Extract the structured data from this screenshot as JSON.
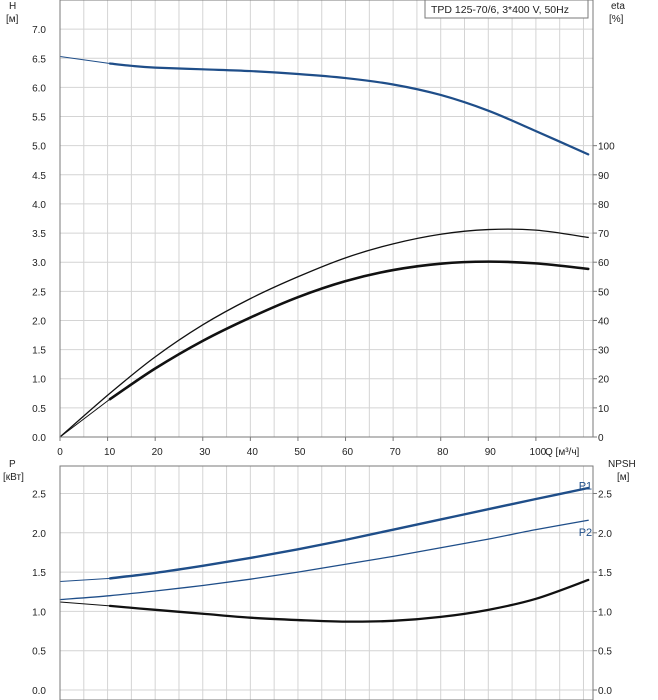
{
  "chart_data": [
    {
      "type": "line",
      "legend_box": "TPD 125-70/6, 3*400 V, 50Hz",
      "xlabel": "Q [м³/ч]",
      "xlim": [
        0,
        112
      ],
      "x_ticks": [
        0,
        10,
        20,
        30,
        40,
        50,
        60,
        70,
        80,
        90,
        100
      ],
      "ylabel_left": "H",
      "ylabel_left_unit": "[м]",
      "ylim_left": [
        0,
        7.5
      ],
      "y_ticks_left": [
        "0.0",
        "0.5",
        "1.0",
        "1.5",
        "2.0",
        "2.5",
        "3.0",
        "3.5",
        "4.0",
        "4.5",
        "5.0",
        "5.5",
        "6.0",
        "6.5",
        "7.0"
      ],
      "ylabel_right": "eta",
      "ylabel_right_unit": "[%]",
      "ylim_right": [
        0,
        150
      ],
      "y_ticks_right": [
        "0",
        "10",
        "20",
        "30",
        "40",
        "50",
        "60",
        "70",
        "80",
        "90",
        "100"
      ],
      "grid": true,
      "series": [
        {
          "color": "#1f4e89",
          "axis": "left",
          "width": 2.2,
          "x": [
            10.5,
            15,
            20,
            30,
            40,
            50,
            60,
            70,
            80,
            90,
            100,
            111
          ],
          "y": [
            6.41,
            6.37,
            6.34,
            6.31,
            6.28,
            6.23,
            6.16,
            6.05,
            5.87,
            5.6,
            5.25,
            4.85
          ]
        },
        {
          "color": "#1f4e89",
          "axis": "left",
          "width": 1,
          "x": [
            0,
            10.5
          ],
          "y": [
            6.53,
            6.41
          ]
        },
        {
          "color": "#111111",
          "axis": "right",
          "width": 1.3,
          "x": [
            0,
            10.5,
            20,
            30,
            40,
            50,
            60,
            70,
            80,
            90,
            100,
            111
          ],
          "y": [
            0,
            15,
            27.5,
            38.5,
            47.5,
            55,
            61.5,
            66.3,
            69.6,
            71.2,
            71,
            68.5
          ]
        },
        {
          "color": "#111111",
          "axis": "right",
          "width": 2.6,
          "x": [
            10.5,
            20,
            30,
            40,
            50,
            60,
            70,
            80,
            90,
            100,
            111
          ],
          "y": [
            13,
            23.5,
            33,
            41,
            48,
            53.5,
            57.3,
            59.5,
            60.2,
            59.6,
            57.7
          ]
        },
        {
          "color": "#111111",
          "axis": "right",
          "width": 1,
          "x": [
            0,
            10.5
          ],
          "y": [
            0,
            13
          ]
        }
      ]
    },
    {
      "type": "line",
      "ylabel_left": "P",
      "ylabel_left_unit": "[кВт]",
      "ylim_left": [
        0,
        2.85
      ],
      "y_ticks_left": [
        "0.0",
        "0.5",
        "1.0",
        "1.5",
        "2.0",
        "2.5"
      ],
      "ylabel_right": "NPSH",
      "ylabel_right_unit": "[м]",
      "ylim_right": [
        0,
        2.85
      ],
      "y_ticks_right": [
        "0.0",
        "0.5",
        "1.0",
        "1.5",
        "2.0",
        "2.5"
      ],
      "grid": true,
      "series": [
        {
          "name": "P1",
          "color": "#1f4e89",
          "axis": "left",
          "width": 2.4,
          "label_at": [
            109,
            2.6
          ],
          "x": [
            10.5,
            20,
            30,
            40,
            50,
            60,
            70,
            80,
            90,
            100,
            111
          ],
          "y": [
            1.42,
            1.49,
            1.58,
            1.68,
            1.79,
            1.91,
            2.04,
            2.17,
            2.3,
            2.43,
            2.57
          ]
        },
        {
          "name": "P2",
          "color": "#1f4e89",
          "axis": "left",
          "width": 1.3,
          "label_at": [
            109,
            2.01
          ],
          "x": [
            0,
            10.5,
            20,
            30,
            40,
            50,
            60,
            70,
            80,
            90,
            100,
            111
          ],
          "y": [
            1.15,
            1.2,
            1.26,
            1.33,
            1.41,
            1.5,
            1.6,
            1.7,
            1.81,
            1.92,
            2.04,
            2.16
          ]
        },
        {
          "color": "#1f4e89",
          "axis": "left",
          "width": 1,
          "x": [
            0,
            10.5
          ],
          "y": [
            1.38,
            1.42
          ]
        },
        {
          "color": "#111111",
          "axis": "right",
          "width": 2.3,
          "x": [
            10.5,
            20,
            30,
            40,
            50,
            60,
            70,
            80,
            90,
            100,
            111
          ],
          "y": [
            1.07,
            1.02,
            0.97,
            0.92,
            0.89,
            0.87,
            0.88,
            0.93,
            1.02,
            1.16,
            1.4
          ]
        },
        {
          "color": "#111111",
          "axis": "right",
          "width": 1,
          "x": [
            0,
            10.5
          ],
          "y": [
            1.12,
            1.07
          ]
        }
      ]
    }
  ]
}
